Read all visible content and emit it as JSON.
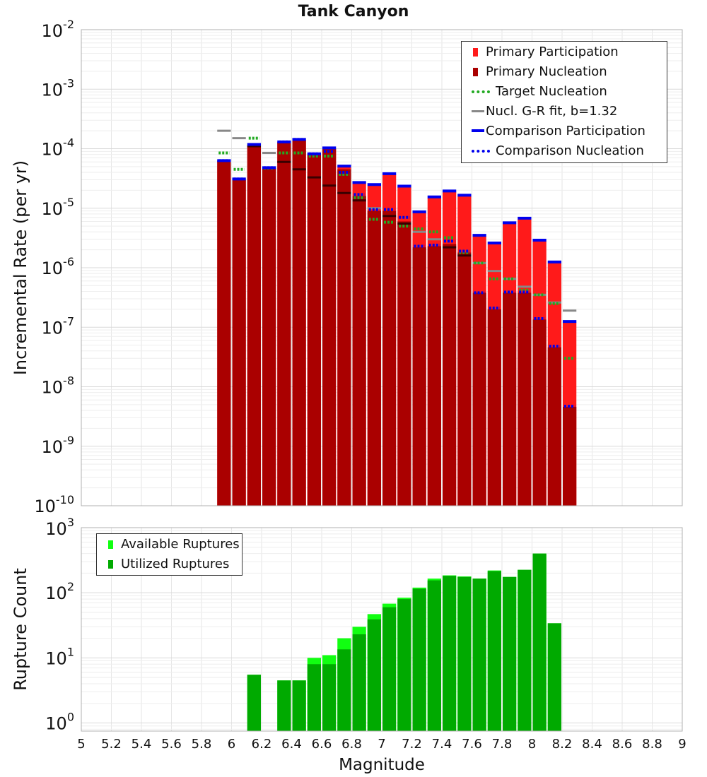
{
  "chart_data": [
    {
      "type": "bar",
      "title": "Tank Canyon",
      "xlabel": "",
      "ylabel": "Incremental Rate (per yr)",
      "yscale": "log",
      "ylim": [
        1e-10,
        0.01
      ],
      "xlim": [
        5,
        9
      ],
      "x_ticks_shown": false,
      "y_tick_exponents": [
        -10,
        -9,
        -8,
        -7,
        -6,
        -5,
        -4,
        -3,
        -2
      ],
      "grid": true,
      "legend_position": "top-right",
      "colors": {
        "participation": "#ff1a1a",
        "nucleation": "#aa0000",
        "target": "#22aa22",
        "gr_fit": "#888888",
        "comparison": "#0000ee",
        "gr_fit_inner": "#3a0000"
      },
      "x": [
        5.95,
        6.05,
        6.15,
        6.25,
        6.35,
        6.45,
        6.55,
        6.65,
        6.75,
        6.85,
        6.95,
        7.05,
        7.15,
        7.25,
        7.35,
        7.45,
        7.55,
        7.65,
        7.75,
        7.85,
        7.95,
        8.05,
        8.15,
        8.25
      ],
      "series": [
        {
          "name": "Primary Participation",
          "style": "bar",
          "values": [
            6.3e-05,
            3e-05,
            0.000115,
            4.7e-05,
            0.000128,
            0.00014,
            8e-05,
            0.0001,
            5e-05,
            2.6e-05,
            2.4e-05,
            3.7e-05,
            2.3e-05,
            8.5e-06,
            1.5e-05,
            1.9e-05,
            1.6e-05,
            3.4e-06,
            2.5e-06,
            5.5e-06,
            6.5e-06,
            2.8e-06,
            1.2e-06,
            1.2e-07
          ]
        },
        {
          "name": "Primary Nucleation",
          "style": "bar",
          "values": [
            6.3e-05,
            3e-05,
            0.000115,
            4.7e-05,
            0.000128,
            0.00014,
            8e-05,
            0.0001,
            4.5e-05,
            1.6e-05,
            9e-06,
            9e-06,
            6e-06,
            2.2e-06,
            2.3e-06,
            2.5e-06,
            1.8e-06,
            3.8e-07,
            2e-07,
            3.8e-07,
            3.8e-07,
            1.35e-07,
            4.6e-08,
            4.6e-09
          ]
        },
        {
          "name": "Target Nucleation",
          "style": "dotted",
          "values": [
            8.5e-05,
            4.5e-05,
            0.00015,
            4.7e-05,
            8.5e-05,
            8.5e-05,
            7.5e-05,
            7.5e-05,
            3.7e-05,
            1.5e-05,
            6.5e-06,
            5.8e-06,
            5e-06,
            4.5e-06,
            4e-06,
            3.2e-06,
            1.8e-06,
            1.2e-06,
            6.5e-07,
            6.5e-07,
            4.2e-07,
            3.5e-07,
            2.5e-07,
            3e-08
          ]
        },
        {
          "name": "Nucl. G-R fit, b=1.32",
          "style": "solid",
          "values": [
            0.0002,
            0.00015,
            0.00011,
            8.5e-05,
            6e-05,
            4.5e-05,
            3.3e-05,
            2.4e-05,
            1.8e-05,
            1.35e-05,
            1e-05,
            7.4e-06,
            5.5e-06,
            4e-06,
            3e-06,
            2.2e-06,
            1.6e-06,
            1.2e-06,
            8.8e-07,
            6.5e-07,
            4.8e-07,
            3.5e-07,
            2.6e-07,
            1.9e-07
          ]
        },
        {
          "name": "Comparison Participation",
          "style": "solid",
          "values": [
            6.3e-05,
            3.1e-05,
            0.000118,
            4.8e-05,
            0.00013,
            0.000143,
            8.2e-05,
            0.000103,
            5.1e-05,
            2.7e-05,
            2.5e-05,
            3.8e-05,
            2.35e-05,
            8.7e-06,
            1.55e-05,
            1.95e-05,
            1.65e-05,
            3.5e-06,
            2.6e-06,
            5.7e-06,
            6.8e-06,
            2.9e-06,
            1.25e-06,
            1.25e-07
          ]
        },
        {
          "name": "Comparison Nucleation",
          "style": "dotted",
          "values": [
            6.3e-05,
            3.1e-05,
            0.000118,
            4.8e-05,
            0.00013,
            0.000143,
            8.2e-05,
            9e-05,
            4e-05,
            1.7e-05,
            9.5e-06,
            9.5e-06,
            7e-06,
            2.3e-06,
            2.4e-06,
            2.8e-06,
            1.9e-06,
            3.8e-07,
            2.1e-07,
            3.9e-07,
            3.9e-07,
            1.4e-07,
            4.8e-08,
            4.7e-09
          ]
        }
      ]
    },
    {
      "type": "bar",
      "title": "",
      "xlabel": "Magnitude",
      "ylabel": "Rupture Count",
      "yscale": "log",
      "ylim": [
        0.75,
        1000
      ],
      "xlim": [
        5,
        9
      ],
      "x_tick_labels": [
        "5",
        "5.2",
        "5.4",
        "5.6",
        "5.8",
        "6",
        "6.2",
        "6.4",
        "6.6",
        "6.8",
        "7",
        "7.2",
        "7.4",
        "7.6",
        "7.8",
        "8",
        "8.2",
        "8.4",
        "8.6",
        "8.8",
        "9"
      ],
      "y_tick_exponents": [
        0,
        1,
        2,
        3
      ],
      "grid": true,
      "legend_position": "top-left",
      "colors": {
        "available": "#11ff11",
        "utilized": "#00aa00"
      },
      "x": [
        6.15,
        6.35,
        6.45,
        6.55,
        6.65,
        6.75,
        6.85,
        6.95,
        7.05,
        7.15,
        7.25,
        7.35,
        7.45,
        7.55,
        7.65,
        7.75,
        7.85,
        7.95,
        8.05,
        8.15
      ],
      "series": [
        {
          "name": "Available Ruptures",
          "values": [
            5.5,
            4.5,
            4.5,
            10,
            11,
            20,
            30,
            47,
            68,
            84,
            120,
            165,
            185,
            178,
            165,
            220,
            175,
            225,
            400,
            34
          ]
        },
        {
          "name": "Utilized Ruptures",
          "values": [
            5.5,
            4.5,
            4.5,
            8,
            8,
            13.5,
            23,
            39,
            60,
            80,
            115,
            155,
            182,
            175,
            165,
            215,
            175,
            225,
            400,
            34
          ]
        }
      ]
    }
  ]
}
